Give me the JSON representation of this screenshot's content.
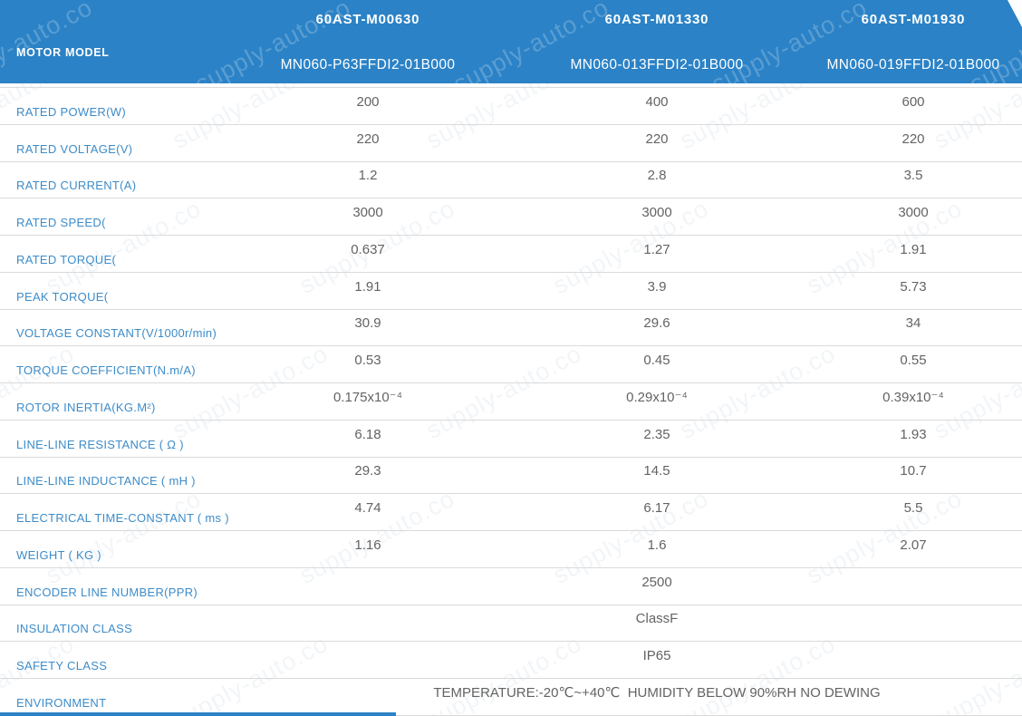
{
  "watermark": "supply-auto.co",
  "colors": {
    "header_bg": "#2b82c6",
    "label_text": "#3d8cc9",
    "value_text": "#636363",
    "divider": "#dadada"
  },
  "header": {
    "label": "MOTOR MODEL",
    "columns": [
      {
        "model": "60AST-M00630",
        "part_number": "MN060-P63FFDI2-01B000"
      },
      {
        "model": "60AST-M01330",
        "part_number": "MN060-013FFDI2-01B000"
      },
      {
        "model": "60AST-M01930",
        "part_number": "MN060-019FFDI2-01B000"
      }
    ]
  },
  "rows": [
    {
      "label": "RATED POWER(W)",
      "values": [
        "200",
        "400",
        "600"
      ]
    },
    {
      "label": "RATED VOLTAGE(V)",
      "values": [
        "220",
        "220",
        "220"
      ]
    },
    {
      "label": "RATED CURRENT(A)",
      "values": [
        "1.2",
        "2.8",
        "3.5"
      ]
    },
    {
      "label": "RATED SPEED(",
      "values": [
        "3000",
        "3000",
        "3000"
      ]
    },
    {
      "label": "RATED TORQUE(",
      "values": [
        "0.637",
        "1.27",
        "1.91"
      ]
    },
    {
      "label": "PEAK TORQUE(",
      "values": [
        "1.91",
        "3.9",
        "5.73"
      ]
    },
    {
      "label": "VOLTAGE CONSTANT(V/1000r/min)",
      "values": [
        "30.9",
        "29.6",
        "34"
      ]
    },
    {
      "label": "TORQUE COEFFICIENT(N.m/A)",
      "values": [
        "0.53",
        "0.45",
        "0.55"
      ]
    },
    {
      "label": "ROTOR INERTIA(KG.M²)",
      "values": [
        "0.175x10⁻⁴",
        "0.29x10⁻⁴",
        "0.39x10⁻⁴"
      ]
    },
    {
      "label": "LINE-LINE RESISTANCE ( Ω )",
      "values": [
        "6.18",
        "2.35",
        "1.93"
      ]
    },
    {
      "label": "LINE-LINE INDUCTANCE ( mH )",
      "values": [
        "29.3",
        "14.5",
        "10.7"
      ]
    },
    {
      "label": "ELECTRICAL TIME-CONSTANT ( ms )",
      "values": [
        "4.74",
        "6.17",
        "5.5"
      ]
    },
    {
      "label": "WEIGHT ( KG )",
      "values": [
        "1.16",
        "1.6",
        "2.07"
      ]
    },
    {
      "label": "ENCODER LINE NUMBER(PPR)",
      "span_value": "2500"
    },
    {
      "label": "INSULATION CLASS",
      "span_value": "ClassF"
    },
    {
      "label": "SAFETY CLASS",
      "span_value": "IP65"
    },
    {
      "label": "ENVIRONMENT",
      "span_value": "TEMPERATURE:-20℃~+40℃  HUMIDITY BELOW 90%RH NO DEWING"
    }
  ]
}
